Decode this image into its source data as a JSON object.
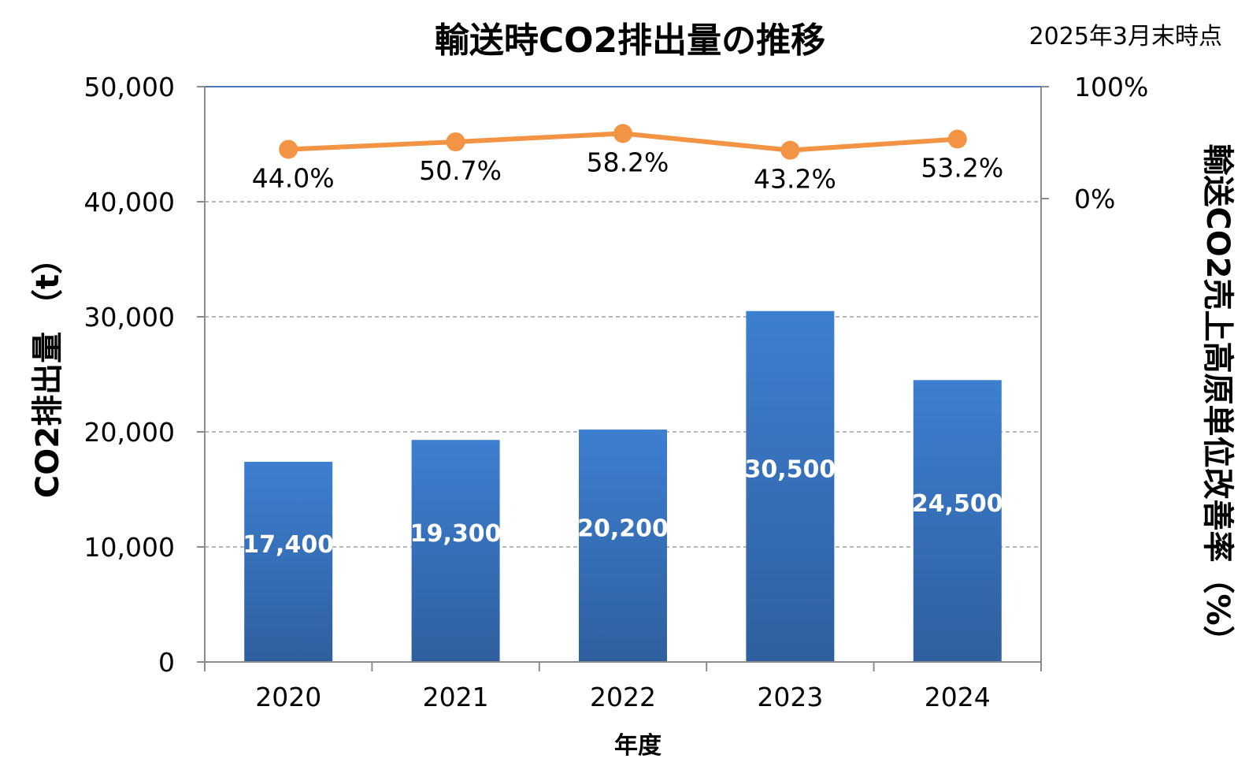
{
  "title": "輸送時CO2排出量の推移",
  "note": "2025年3月末時点",
  "colors": {
    "bar_top": "#3d7fd0",
    "bar_bottom": "#2f5f9f",
    "line": "#f29444",
    "axis": "#8c8c8c",
    "grid": "#8c8c8c",
    "top_line": "#4a78b8"
  },
  "chart_data": {
    "type": "bar",
    "title": "輸送時CO2排出量の推移",
    "xlabel": "年度",
    "ylabel": "CO2排出量 （t）",
    "y2label": "輸送CO2売上高原単位改善率（%）",
    "categories": [
      "2020",
      "2021",
      "2022",
      "2023",
      "2024"
    ],
    "ylim": [
      0,
      50000
    ],
    "yticks": [
      0,
      10000,
      20000,
      30000,
      40000,
      50000
    ],
    "ytick_labels": [
      "0",
      "10,000",
      "20,000",
      "30,000",
      "40,000",
      "50,000"
    ],
    "y2lim": [
      0,
      100
    ],
    "y2ticks": [
      0,
      100
    ],
    "y2tick_labels": [
      "0%",
      "100%"
    ],
    "grid": true,
    "series": [
      {
        "type": "bar",
        "values": [
          17400,
          19300,
          20200,
          30500,
          24500
        ],
        "labels": [
          "17,400",
          "19,300",
          "20,200",
          "30,500",
          "24,500"
        ]
      },
      {
        "type": "line",
        "axis": "right",
        "values": [
          44.0,
          50.7,
          58.2,
          43.2,
          53.2
        ],
        "labels": [
          "44.0%",
          "50.7%",
          "58.2%",
          "43.2%",
          "53.2%"
        ]
      }
    ]
  }
}
